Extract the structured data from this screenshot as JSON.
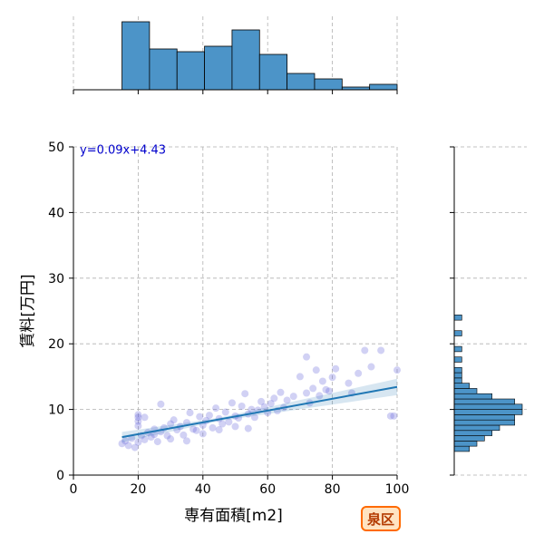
{
  "chart_data": {
    "type": "scatter",
    "title": "",
    "xlabel": "専有面積[m2]",
    "ylabel": "賃料[万円]",
    "xlim": [
      0,
      100
    ],
    "ylim": [
      0,
      50
    ],
    "xticks": [
      0,
      20,
      40,
      60,
      80,
      100
    ],
    "yticks": [
      0,
      10,
      20,
      30,
      40,
      50
    ],
    "grid": true,
    "regression": {
      "slope": 0.09,
      "intercept": 4.43,
      "equation": "y=0.09x+4.43",
      "color": "#1f77b4",
      "x_range": [
        15,
        100
      ]
    },
    "badge": {
      "label": "泉区",
      "color": "#b33a00",
      "fill": "#ffe3c2",
      "border": "#ff6a00"
    },
    "colors": {
      "points": "#5b5bd6",
      "hist": "#4c94c8",
      "equation": "#0000cc"
    },
    "points": [
      {
        "x": 15,
        "y": 4.8
      },
      {
        "x": 16,
        "y": 5.2
      },
      {
        "x": 17,
        "y": 4.5
      },
      {
        "x": 18,
        "y": 5.6
      },
      {
        "x": 19,
        "y": 4.2
      },
      {
        "x": 20,
        "y": 5.0
      },
      {
        "x": 20,
        "y": 7.5
      },
      {
        "x": 20,
        "y": 8.2
      },
      {
        "x": 20,
        "y": 8.8
      },
      {
        "x": 20,
        "y": 9.2
      },
      {
        "x": 21,
        "y": 6.0
      },
      {
        "x": 22,
        "y": 5.4
      },
      {
        "x": 22,
        "y": 8.8
      },
      {
        "x": 23,
        "y": 6.5
      },
      {
        "x": 24,
        "y": 5.8
      },
      {
        "x": 25,
        "y": 6.2
      },
      {
        "x": 25,
        "y": 7.0
      },
      {
        "x": 26,
        "y": 5.1
      },
      {
        "x": 27,
        "y": 10.8
      },
      {
        "x": 27,
        "y": 6.6
      },
      {
        "x": 28,
        "y": 7.2
      },
      {
        "x": 29,
        "y": 6.0
      },
      {
        "x": 30,
        "y": 5.5
      },
      {
        "x": 30,
        "y": 7.8
      },
      {
        "x": 31,
        "y": 8.4
      },
      {
        "x": 32,
        "y": 6.9
      },
      {
        "x": 33,
        "y": 7.4
      },
      {
        "x": 34,
        "y": 6.1
      },
      {
        "x": 35,
        "y": 8.0
      },
      {
        "x": 35,
        "y": 5.2
      },
      {
        "x": 36,
        "y": 9.5
      },
      {
        "x": 37,
        "y": 7.0
      },
      {
        "x": 38,
        "y": 6.8
      },
      {
        "x": 39,
        "y": 8.9
      },
      {
        "x": 40,
        "y": 7.6
      },
      {
        "x": 40,
        "y": 6.3
      },
      {
        "x": 41,
        "y": 8.3
      },
      {
        "x": 42,
        "y": 9.1
      },
      {
        "x": 43,
        "y": 7.2
      },
      {
        "x": 44,
        "y": 10.2
      },
      {
        "x": 45,
        "y": 8.6
      },
      {
        "x": 45,
        "y": 6.9
      },
      {
        "x": 46,
        "y": 7.8
      },
      {
        "x": 47,
        "y": 9.6
      },
      {
        "x": 48,
        "y": 8.1
      },
      {
        "x": 49,
        "y": 11.0
      },
      {
        "x": 50,
        "y": 9.0
      },
      {
        "x": 50,
        "y": 7.4
      },
      {
        "x": 51,
        "y": 8.7
      },
      {
        "x": 52,
        "y": 10.5
      },
      {
        "x": 53,
        "y": 12.4
      },
      {
        "x": 54,
        "y": 9.3
      },
      {
        "x": 54,
        "y": 7.1
      },
      {
        "x": 55,
        "y": 10.0
      },
      {
        "x": 56,
        "y": 8.8
      },
      {
        "x": 57,
        "y": 9.9
      },
      {
        "x": 58,
        "y": 11.2
      },
      {
        "x": 59,
        "y": 10.4
      },
      {
        "x": 60,
        "y": 9.5
      },
      {
        "x": 61,
        "y": 10.9
      },
      {
        "x": 62,
        "y": 11.7
      },
      {
        "x": 63,
        "y": 9.8
      },
      {
        "x": 64,
        "y": 12.6
      },
      {
        "x": 65,
        "y": 10.3
      },
      {
        "x": 66,
        "y": 11.4
      },
      {
        "x": 68,
        "y": 12.0
      },
      {
        "x": 70,
        "y": 15.0
      },
      {
        "x": 72,
        "y": 12.5
      },
      {
        "x": 72,
        "y": 18.0
      },
      {
        "x": 73,
        "y": 11.0
      },
      {
        "x": 74,
        "y": 13.2
      },
      {
        "x": 75,
        "y": 16.0
      },
      {
        "x": 76,
        "y": 12.1
      },
      {
        "x": 77,
        "y": 14.3
      },
      {
        "x": 78,
        "y": 13.0
      },
      {
        "x": 79,
        "y": 12.8
      },
      {
        "x": 80,
        "y": 14.9
      },
      {
        "x": 81,
        "y": 16.2
      },
      {
        "x": 85,
        "y": 14.0
      },
      {
        "x": 86,
        "y": 12.5
      },
      {
        "x": 88,
        "y": 15.5
      },
      {
        "x": 90,
        "y": 19.0
      },
      {
        "x": 92,
        "y": 16.5
      },
      {
        "x": 95,
        "y": 19.0
      },
      {
        "x": 98,
        "y": 9.0
      },
      {
        "x": 99,
        "y": 9.0
      },
      {
        "x": 100,
        "y": 16.0
      }
    ],
    "x_hist": {
      "bins": [
        15,
        23.5,
        32,
        40.5,
        49,
        57.5,
        66,
        74.5,
        83,
        91.5,
        100
      ],
      "counts": [
        25,
        15,
        14,
        16,
        22,
        13,
        6,
        4,
        1,
        2
      ]
    },
    "y_hist": {
      "bin_width": 0.8,
      "bins_start": 3.6,
      "counts": [
        2,
        3,
        4,
        5,
        6,
        8,
        8,
        9,
        9,
        8,
        5,
        3,
        2,
        1,
        1,
        1,
        0,
        1,
        0,
        1,
        0,
        0,
        1,
        0,
        0,
        1,
        0
      ]
    }
  }
}
